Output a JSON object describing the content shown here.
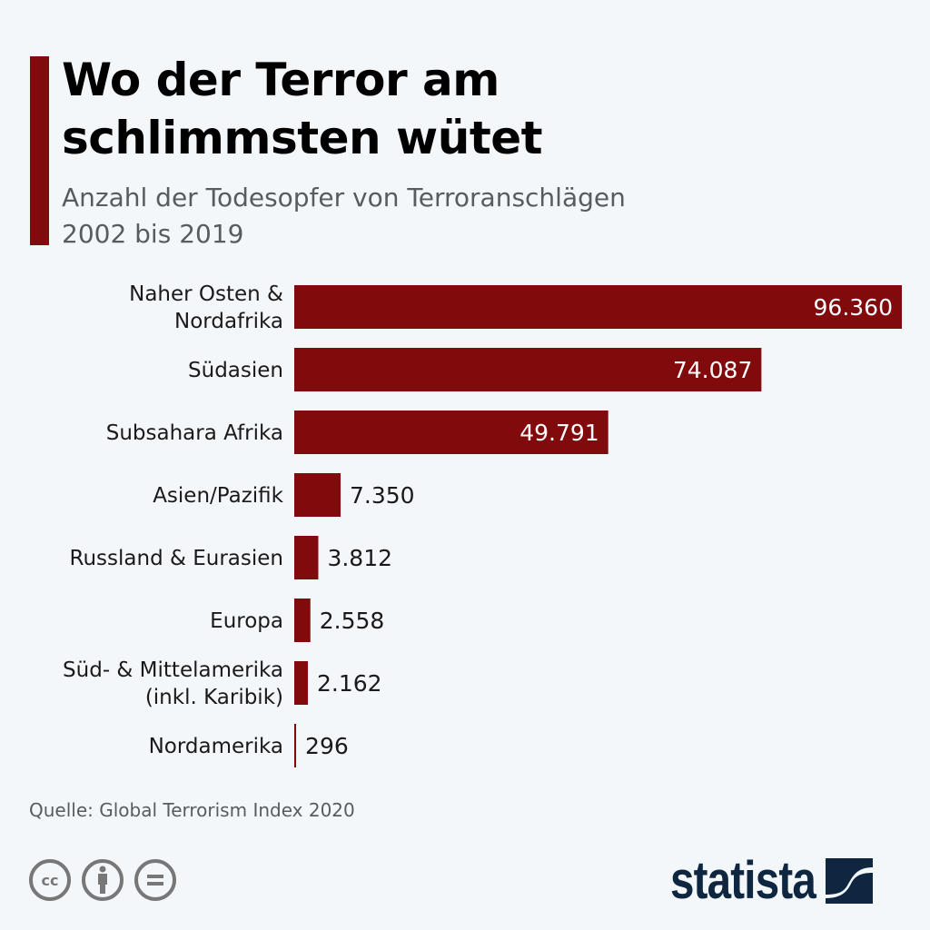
{
  "header": {
    "title_line1": "Wo der Terror am",
    "title_line2": "schlimmsten wütet",
    "subtitle_line1": "Anzahl der Todesopfer von Terroranschlägen",
    "subtitle_line2": "2002 bis 2019"
  },
  "chart_data": {
    "type": "bar",
    "orientation": "horizontal",
    "title": "Wo der Terror am schlimmsten wütet",
    "subtitle": "Anzahl der Todesopfer von Terroranschlägen 2002 bis 2019",
    "categories": [
      [
        "Naher Osten &",
        "Nordafrika"
      ],
      [
        "Südasien"
      ],
      [
        "Subsahara Afrika"
      ],
      [
        "Asien/Pazifik"
      ],
      [
        "Russland & Eurasien"
      ],
      [
        "Europa"
      ],
      [
        "Süd- & Mittelamerika",
        "(inkl. Karibik)"
      ],
      [
        "Nordamerika"
      ]
    ],
    "values": [
      96360,
      74087,
      49791,
      7350,
      3812,
      2558,
      2162,
      296
    ],
    "value_labels": [
      "96.360",
      "74.087",
      "49.791",
      "7.350",
      "3.812",
      "2.558",
      "2.162",
      "296"
    ],
    "xlabel": "",
    "ylabel": "",
    "xlim": [
      0,
      96360
    ],
    "grid": false,
    "legend": "none",
    "colors": {
      "bar": "#800a0c",
      "label_inside": "#ffffff",
      "label_outside": "#1a1a1a",
      "category_text": "#1a1a1a"
    }
  },
  "footer": {
    "source": "Quelle: Global Terrorism Index 2020",
    "license_icons": [
      "cc-icon",
      "attribution-icon",
      "no-derivatives-icon"
    ],
    "brand": "statista"
  },
  "colors": {
    "background": "#f4f7fa",
    "accent": "#800a0c",
    "brand": "#0f2640",
    "muted": "#575c61"
  }
}
